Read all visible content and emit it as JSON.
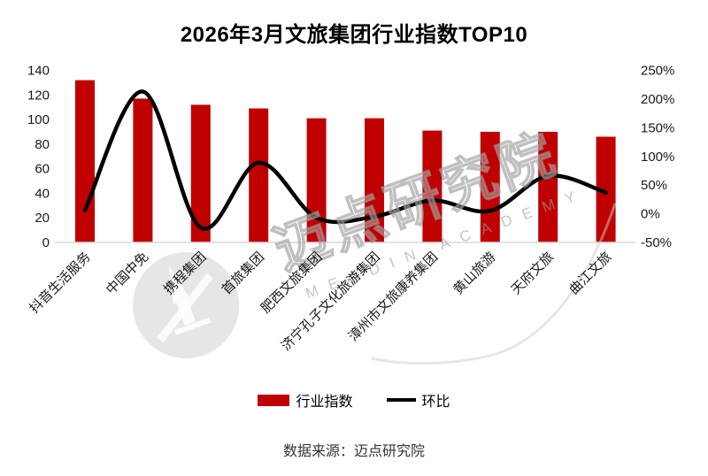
{
  "title": "2026年3月文旅集团行业指数TOP10",
  "legend": {
    "bar_label": "行业指数",
    "line_label": "环比"
  },
  "footer": {
    "source": "数据来源：迈点研究院"
  },
  "watermark": {
    "cn_text": "迈点研究院",
    "en_text": "MEADIN ACADEMY"
  },
  "colors": {
    "bar": "#C00000",
    "line": "#000000",
    "axis_line": "#D9D9D9",
    "text": "#1A1A1A",
    "watermark": "#C8C8C8"
  },
  "chart_data": {
    "type": "combo",
    "title": "2026年3月文旅集团行业指数TOP10",
    "categories": [
      "抖音生活服务",
      "中国中免",
      "携程集团",
      "首旅集团",
      "肥西文旅集团",
      "济宁孔子文化旅游集团",
      "漳州市文旅康养集团",
      "黄山旅游",
      "天府文旅",
      "曲江文旅"
    ],
    "series": [
      {
        "name": "行业指数",
        "type": "bar",
        "axis": "left",
        "values": [
          132,
          117,
          112,
          109,
          101,
          101,
          91,
          90,
          90,
          86
        ]
      },
      {
        "name": "环比",
        "type": "line",
        "axis": "right",
        "unit": "%",
        "values": [
          6,
          213,
          -24,
          89,
          -7,
          -5,
          23,
          5,
          66,
          37
        ]
      }
    ],
    "left_axis": {
      "min": 0,
      "max": 140,
      "step": 20,
      "ticks": [
        0,
        20,
        40,
        60,
        80,
        100,
        120,
        140
      ]
    },
    "right_axis": {
      "min_pct": -50,
      "max_pct": 250,
      "step_pct": 50,
      "tick_values": [
        -50,
        0,
        50,
        100,
        150,
        200,
        250
      ],
      "tick_labels": [
        "-50%",
        "0%",
        "50%",
        "100%",
        "150%",
        "200%",
        "250%"
      ]
    },
    "grid": false,
    "legend_position": "bottom"
  }
}
